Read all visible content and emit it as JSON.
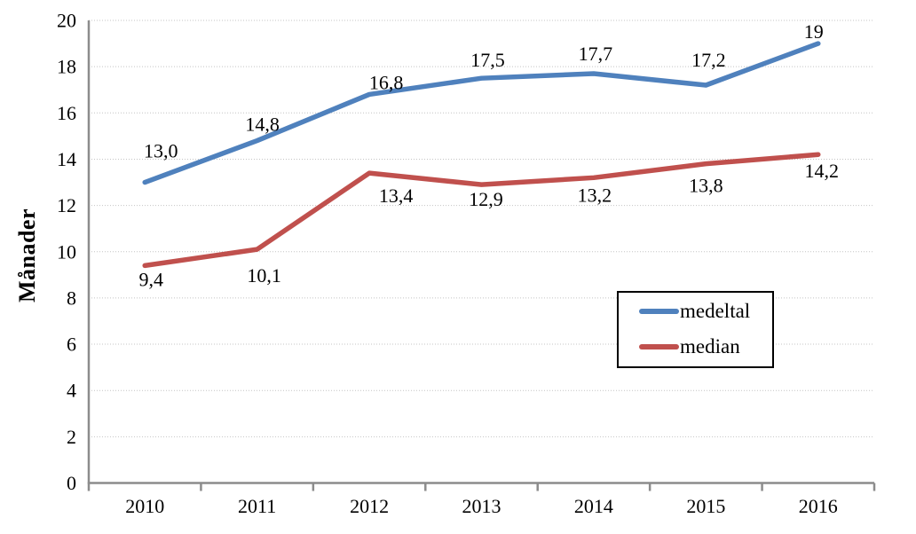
{
  "chart_data": {
    "type": "line",
    "title": "",
    "ylabel": "Månader",
    "xlabel": "",
    "categories": [
      "2010",
      "2011",
      "2012",
      "2013",
      "2014",
      "2015",
      "2016"
    ],
    "series": [
      {
        "name": "medeltal",
        "color": "#4F81BD",
        "values": [
          13.0,
          14.8,
          16.8,
          17.5,
          17.7,
          17.2,
          19.0
        ],
        "labels": [
          "13,0",
          "14,8",
          "16,8",
          "17,5",
          "17,7",
          "17,2",
          "19"
        ],
        "label_position": "above"
      },
      {
        "name": "median",
        "color": "#C0504D",
        "values": [
          9.4,
          10.1,
          13.4,
          12.9,
          13.2,
          13.8,
          14.2
        ],
        "labels": [
          "9,4",
          "10,1",
          "13,4",
          "12,9",
          "13,2",
          "13,8",
          "14,2"
        ],
        "label_position": "below"
      }
    ],
    "ylim": [
      0,
      20
    ],
    "ytick_step": 2,
    "ytick_labels": [
      "0",
      "2",
      "4",
      "6",
      "8",
      "10",
      "12",
      "14",
      "16",
      "18",
      "20"
    ],
    "grid": true,
    "legend": {
      "position": "middle-right",
      "entries": [
        "medeltal",
        "median"
      ]
    },
    "decimal_separator": ","
  },
  "style": {
    "background": "#FFFFFF",
    "axis_color": "#8C8C8C",
    "gridline_color": "#C4C4C4",
    "text_color": "#000000",
    "legend_border_color": "#000000"
  }
}
